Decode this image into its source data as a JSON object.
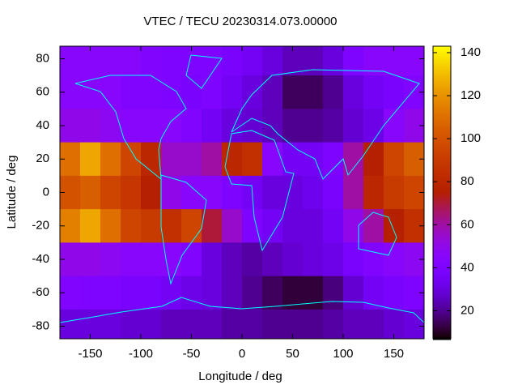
{
  "chart_data": {
    "type": "heatmap",
    "title": "VTEC / TECU 20230314.073.00000",
    "x_label": "Longitude / deg",
    "y_label": "Latitude / deg",
    "xlim": [
      -180,
      180
    ],
    "ylim": [
      -87.5,
      87.5
    ],
    "xticks": [
      -150,
      -100,
      -50,
      0,
      50,
      100,
      150
    ],
    "yticks": [
      -80,
      -60,
      -40,
      -20,
      0,
      20,
      40,
      60,
      80
    ],
    "cblim": [
      7,
      143
    ],
    "cbticks": [
      20,
      40,
      60,
      80,
      100,
      120,
      140
    ],
    "x": [
      -170,
      -150,
      -130,
      -110,
      -90,
      -70,
      -50,
      -30,
      -10,
      10,
      30,
      50,
      70,
      90,
      110,
      130,
      150,
      170
    ],
    "y": [
      80,
      60,
      40,
      20,
      0,
      -20,
      -40,
      -60,
      -80
    ],
    "z": [
      [
        45,
        45,
        45,
        45,
        42,
        40,
        40,
        40,
        38,
        35,
        30,
        25,
        25,
        30,
        40,
        45,
        45,
        45
      ],
      [
        45,
        45,
        45,
        42,
        42,
        40,
        38,
        40,
        35,
        30,
        25,
        15,
        15,
        20,
        30,
        35,
        38,
        42
      ],
      [
        50,
        50,
        48,
        45,
        45,
        45,
        42,
        35,
        30,
        28,
        25,
        20,
        20,
        22,
        28,
        32,
        45,
        50
      ],
      [
        110,
        125,
        110,
        95,
        80,
        55,
        55,
        60,
        80,
        85,
        45,
        35,
        35,
        40,
        60,
        75,
        95,
        105
      ],
      [
        100,
        105,
        95,
        88,
        75,
        50,
        45,
        45,
        40,
        35,
        30,
        30,
        33,
        38,
        60,
        80,
        90,
        95
      ],
      [
        115,
        125,
        110,
        95,
        90,
        85,
        95,
        70,
        55,
        40,
        35,
        30,
        30,
        35,
        50,
        60,
        75,
        85
      ],
      [
        50,
        50,
        48,
        45,
        45,
        45,
        42,
        30,
        25,
        22,
        25,
        28,
        30,
        32,
        38,
        42,
        45,
        48
      ],
      [
        42,
        40,
        40,
        38,
        38,
        35,
        32,
        30,
        25,
        20,
        15,
        12,
        12,
        18,
        28,
        35,
        38,
        40
      ],
      [
        30,
        30,
        30,
        28,
        28,
        25,
        25,
        25,
        22,
        22,
        20,
        20,
        20,
        22,
        25,
        25,
        28,
        30
      ]
    ]
  }
}
